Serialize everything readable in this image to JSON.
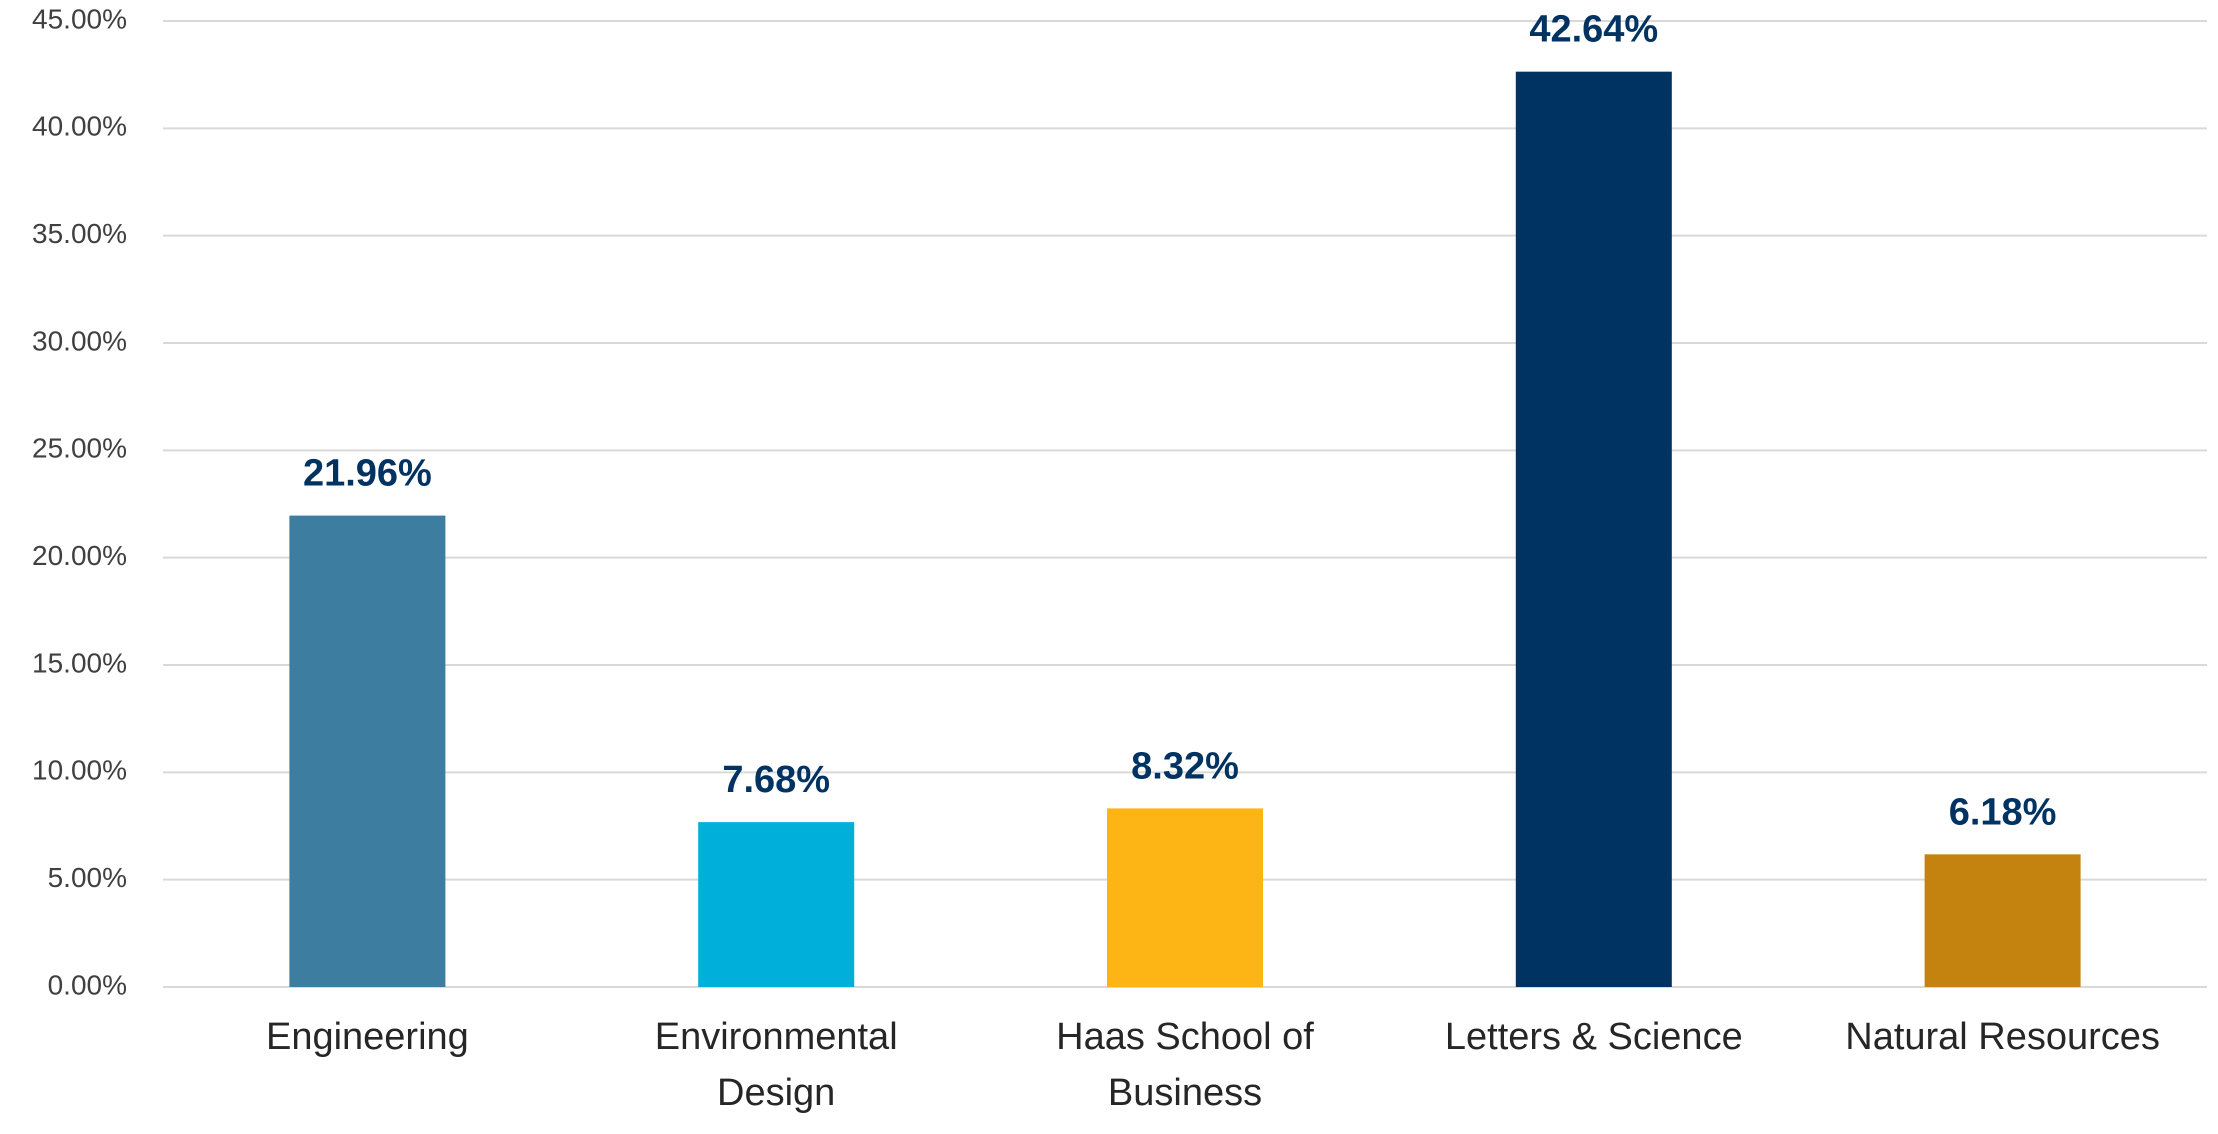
{
  "chart_data": {
    "type": "bar",
    "categories": [
      "Engineering",
      "Environmental Design",
      "Haas School of Business",
      "Letters & Science",
      "Natural Resources"
    ],
    "values": [
      21.96,
      7.68,
      8.32,
      42.64,
      6.18
    ],
    "value_labels": [
      "21.96%",
      "7.68%",
      "8.32%",
      "42.64%",
      "6.18%"
    ],
    "colors": [
      "#3d7ea0",
      "#00b0da",
      "#fdb515",
      "#003262",
      "#c4820e"
    ],
    "ylim": [
      0,
      45
    ],
    "yticks": [
      {
        "value": 0,
        "label": "0.00%"
      },
      {
        "value": 5,
        "label": "5.00%"
      },
      {
        "value": 10,
        "label": "10.00%"
      },
      {
        "value": 15,
        "label": "15.00%"
      },
      {
        "value": 20,
        "label": "20.00%"
      },
      {
        "value": 25,
        "label": "25.00%"
      },
      {
        "value": 30,
        "label": "30.00%"
      },
      {
        "value": 35,
        "label": "35.00%"
      },
      {
        "value": 40,
        "label": "40.00%"
      },
      {
        "value": 45,
        "label": "45.00%"
      }
    ],
    "grid": true
  }
}
